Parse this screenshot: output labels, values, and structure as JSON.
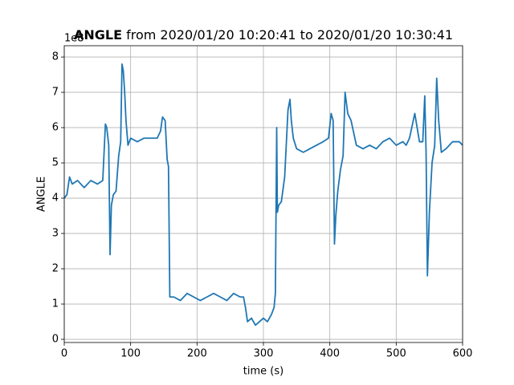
{
  "chart_data": {
    "type": "line",
    "title": "ANGLE",
    "title_suffix": "from 2020/01/20 10:20:41 to 2020/01/20 10:30:41",
    "offset_text": "1e8",
    "xlabel": "time (s)",
    "ylabel": "ANGLE",
    "xlim": [
      0,
      600
    ],
    "ylim": [
      -0.09,
      8.32
    ],
    "xticks": [
      0,
      100,
      200,
      300,
      400,
      500,
      600
    ],
    "yticks": [
      0,
      1,
      2,
      3,
      4,
      5,
      6,
      7,
      8
    ],
    "grid": true,
    "x": [
      0,
      4,
      8,
      12,
      20,
      30,
      40,
      50,
      58,
      62,
      64,
      67,
      69,
      71,
      74,
      78,
      82,
      85,
      87,
      89,
      91,
      93,
      96,
      100,
      110,
      120,
      130,
      140,
      145,
      148,
      152,
      155,
      157,
      159,
      165,
      175,
      185,
      195,
      205,
      215,
      225,
      235,
      245,
      255,
      265,
      270,
      273,
      276,
      282,
      288,
      294,
      300,
      306,
      312,
      316,
      318,
      320,
      321,
      323,
      327,
      332,
      337,
      340,
      342,
      345,
      350,
      360,
      370,
      380,
      390,
      398,
      402,
      405,
      407,
      409,
      412,
      416,
      420,
      423,
      427,
      432,
      440,
      450,
      460,
      470,
      480,
      490,
      500,
      510,
      515,
      520,
      528,
      535,
      540,
      543,
      545,
      547,
      550,
      554,
      558,
      561,
      564,
      568,
      575,
      585,
      595,
      600
    ],
    "series": [
      {
        "color": "#1f77b4",
        "values": [
          4.0,
          4.1,
          4.6,
          4.4,
          4.5,
          4.3,
          4.5,
          4.4,
          4.5,
          6.1,
          6.0,
          5.5,
          2.4,
          3.8,
          4.1,
          4.2,
          5.2,
          5.6,
          7.8,
          7.6,
          7.0,
          6.2,
          5.5,
          5.7,
          5.6,
          5.7,
          5.7,
          5.7,
          5.9,
          6.3,
          6.2,
          5.1,
          4.9,
          1.2,
          1.2,
          1.1,
          1.3,
          1.2,
          1.1,
          1.2,
          1.3,
          1.2,
          1.1,
          1.3,
          1.2,
          1.2,
          0.9,
          0.5,
          0.6,
          0.4,
          0.5,
          0.6,
          0.5,
          0.7,
          0.9,
          1.3,
          6.0,
          3.6,
          3.8,
          3.9,
          4.6,
          6.5,
          6.8,
          6.2,
          5.7,
          5.4,
          5.3,
          5.4,
          5.5,
          5.6,
          5.7,
          6.4,
          6.2,
          2.7,
          3.5,
          4.2,
          4.8,
          5.2,
          7.0,
          6.4,
          6.2,
          5.5,
          5.4,
          5.5,
          5.4,
          5.6,
          5.7,
          5.5,
          5.6,
          5.5,
          5.7,
          6.4,
          5.6,
          5.6,
          6.9,
          5.3,
          1.8,
          3.6,
          5.0,
          5.5,
          7.4,
          6.2,
          5.3,
          5.4,
          5.6,
          5.6,
          5.5
        ]
      }
    ]
  }
}
